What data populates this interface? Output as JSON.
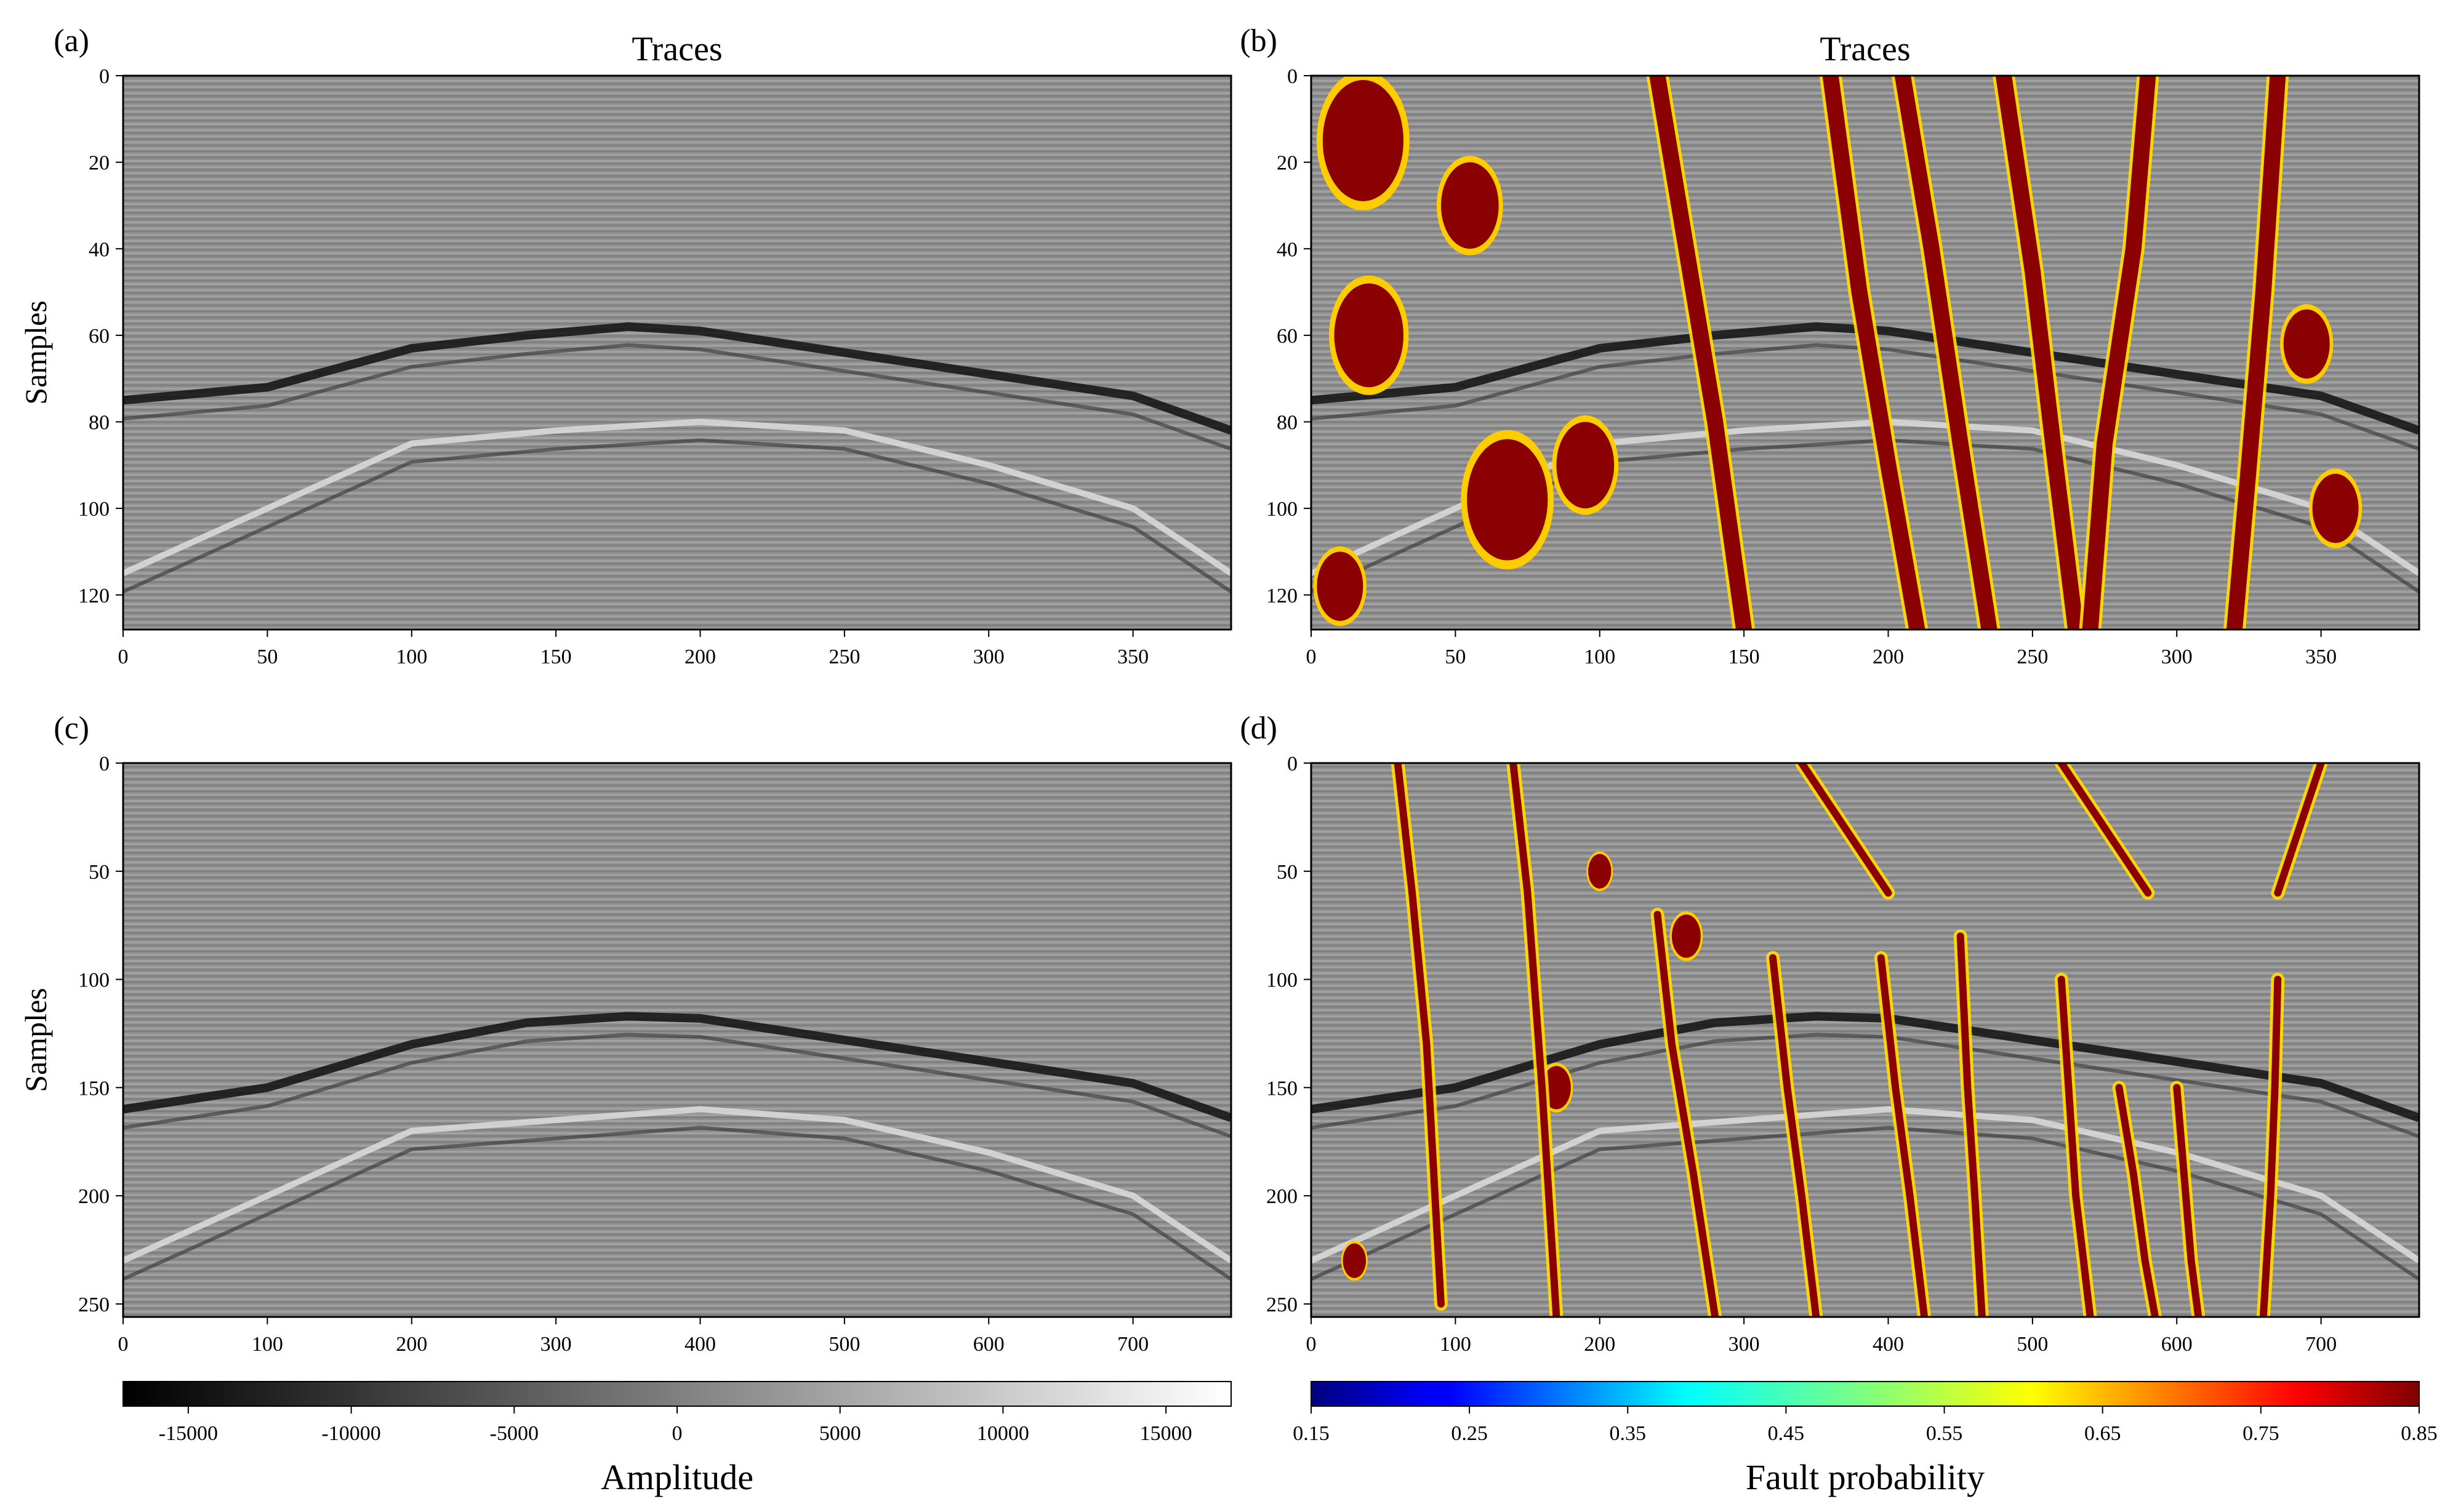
{
  "colors": {
    "panel_background": "#8e8e8e",
    "fault_low": "#00007f",
    "fault_high": "#7f0000",
    "amplitude_low": "#000000",
    "amplitude_high": "#ffffff",
    "axis": "#000000"
  },
  "chart_data": [
    {
      "panel_label": "(a)",
      "type": "heatmap",
      "title": "Traces",
      "ylabel": "Samples",
      "xlabel": "",
      "xlim": [
        0,
        384
      ],
      "ylim": [
        128,
        0
      ],
      "xticks": [
        "0",
        "50",
        "100",
        "150",
        "200",
        "250",
        "300",
        "350"
      ],
      "yticks": [
        "0",
        "20",
        "40",
        "60",
        "80",
        "100",
        "120"
      ],
      "colormap": "gray",
      "horizons": [
        {
          "name": "",
          "x": [
            0,
            50,
            100,
            140,
            175,
            200,
            250,
            300,
            350,
            384
          ],
          "y": [
            75,
            72,
            63,
            60,
            58,
            59,
            64,
            69,
            74,
            82
          ]
        },
        {
          "name": "",
          "x": [
            0,
            50,
            100,
            150,
            200,
            250,
            300,
            350,
            384
          ],
          "y": [
            115,
            100,
            85,
            82,
            80,
            82,
            90,
            100,
            115
          ]
        }
      ]
    },
    {
      "panel_label": "(b)",
      "type": "heatmap",
      "title": "Traces",
      "ylabel": "",
      "xlabel": "",
      "xlim": [
        0,
        384
      ],
      "ylim": [
        128,
        0
      ],
      "xticks": [
        "0",
        "50",
        "100",
        "150",
        "200",
        "250",
        "300",
        "350"
      ],
      "yticks": [
        "0",
        "20",
        "40",
        "60",
        "80",
        "100",
        "120"
      ],
      "colormap": "jet-overlay-on-gray",
      "fault_traces": [
        {
          "x": [
            120,
            130,
            140,
            150
          ],
          "y": [
            0,
            40,
            80,
            128
          ]
        },
        {
          "x": [
            180,
            190,
            200,
            210
          ],
          "y": [
            0,
            50,
            90,
            128
          ]
        },
        {
          "x": [
            205,
            215,
            225,
            235
          ],
          "y": [
            0,
            40,
            85,
            128
          ]
        },
        {
          "x": [
            240,
            250,
            258,
            265
          ],
          "y": [
            0,
            45,
            90,
            128
          ]
        },
        {
          "x": [
            290,
            285,
            275,
            270
          ],
          "y": [
            0,
            40,
            85,
            128
          ]
        },
        {
          "x": [
            335,
            330,
            325,
            320
          ],
          "y": [
            0,
            50,
            90,
            128
          ]
        }
      ],
      "fault_blobs": [
        {
          "cx": 18,
          "cy": 15,
          "r": 14
        },
        {
          "cx": 55,
          "cy": 30,
          "r": 10
        },
        {
          "cx": 20,
          "cy": 60,
          "r": 12
        },
        {
          "cx": 68,
          "cy": 98,
          "r": 14
        },
        {
          "cx": 95,
          "cy": 90,
          "r": 10
        },
        {
          "cx": 345,
          "cy": 62,
          "r": 8
        },
        {
          "cx": 355,
          "cy": 100,
          "r": 8
        },
        {
          "cx": 10,
          "cy": 118,
          "r": 8
        }
      ]
    },
    {
      "panel_label": "(c)",
      "type": "heatmap",
      "title": "",
      "ylabel": "Samples",
      "xlabel": "",
      "xlim": [
        0,
        768
      ],
      "ylim": [
        256,
        0
      ],
      "xticks": [
        "0",
        "100",
        "200",
        "300",
        "400",
        "500",
        "600",
        "700"
      ],
      "yticks": [
        "0",
        "50",
        "100",
        "150",
        "200",
        "250"
      ],
      "colormap": "gray",
      "horizons": [
        {
          "name": "",
          "x": [
            0,
            100,
            200,
            280,
            350,
            400,
            500,
            600,
            700,
            768
          ],
          "y": [
            160,
            150,
            130,
            120,
            117,
            118,
            128,
            138,
            148,
            164
          ]
        },
        {
          "name": "",
          "x": [
            0,
            100,
            200,
            300,
            400,
            500,
            600,
            700,
            768
          ],
          "y": [
            230,
            200,
            170,
            165,
            160,
            165,
            180,
            200,
            230
          ]
        }
      ]
    },
    {
      "panel_label": "(d)",
      "type": "heatmap",
      "title": "",
      "ylabel": "",
      "xlabel": "",
      "xlim": [
        0,
        768
      ],
      "ylim": [
        256,
        0
      ],
      "xticks": [
        "0",
        "100",
        "200",
        "300",
        "400",
        "500",
        "600",
        "700"
      ],
      "yticks": [
        "0",
        "50",
        "100",
        "150",
        "200",
        "250"
      ],
      "colormap": "jet-overlay-on-gray",
      "fault_traces": [
        {
          "x": [
            60,
            70,
            80,
            90
          ],
          "y": [
            0,
            60,
            130,
            250
          ]
        },
        {
          "x": [
            140,
            150,
            160,
            170
          ],
          "y": [
            0,
            60,
            150,
            256
          ]
        },
        {
          "x": [
            240,
            250,
            265,
            280
          ],
          "y": [
            70,
            130,
            190,
            256
          ]
        },
        {
          "x": [
            320,
            330,
            340,
            350
          ],
          "y": [
            90,
            150,
            200,
            256
          ]
        },
        {
          "x": [
            395,
            405,
            415,
            425
          ],
          "y": [
            90,
            150,
            200,
            256
          ]
        },
        {
          "x": [
            450,
            455,
            460,
            465
          ],
          "y": [
            80,
            150,
            200,
            256
          ]
        },
        {
          "x": [
            520,
            525,
            530,
            540
          ],
          "y": [
            100,
            150,
            200,
            256
          ]
        },
        {
          "x": [
            560,
            570,
            578,
            585
          ],
          "y": [
            150,
            190,
            230,
            256
          ]
        },
        {
          "x": [
            600,
            605,
            610,
            615
          ],
          "y": [
            150,
            190,
            230,
            256
          ]
        },
        {
          "x": [
            670,
            668,
            665,
            660
          ],
          "y": [
            100,
            150,
            200,
            256
          ]
        },
        {
          "x": [
            340,
            360,
            380,
            400
          ],
          "y": [
            0,
            20,
            40,
            60
          ]
        },
        {
          "x": [
            520,
            540,
            560,
            580
          ],
          "y": [
            0,
            20,
            40,
            60
          ]
        },
        {
          "x": [
            700,
            690,
            680,
            670
          ],
          "y": [
            0,
            20,
            40,
            60
          ]
        }
      ],
      "fault_blobs": [
        {
          "cx": 200,
          "cy": 50,
          "r": 8
        },
        {
          "cx": 260,
          "cy": 80,
          "r": 10
        },
        {
          "cx": 170,
          "cy": 150,
          "r": 10
        },
        {
          "cx": 30,
          "cy": 230,
          "r": 8
        }
      ]
    }
  ],
  "colorbars": [
    {
      "label": "Amplitude",
      "colormap": "gray",
      "min": -17000,
      "max": 17000,
      "ticks": [
        -15000,
        -10000,
        -5000,
        0,
        5000,
        10000,
        15000
      ],
      "tick_labels": [
        "-15000",
        "-10000",
        "-5000",
        "0",
        "5000",
        "10000",
        "15000"
      ]
    },
    {
      "label": "Fault probability",
      "colormap": "jet",
      "min": 0.15,
      "max": 0.85,
      "ticks": [
        0.15,
        0.25,
        0.35,
        0.45,
        0.55,
        0.65,
        0.75,
        0.85
      ],
      "tick_labels": [
        "0.15",
        "0.25",
        "0.35",
        "0.45",
        "0.55",
        "0.65",
        "0.75",
        "0.85"
      ]
    }
  ]
}
